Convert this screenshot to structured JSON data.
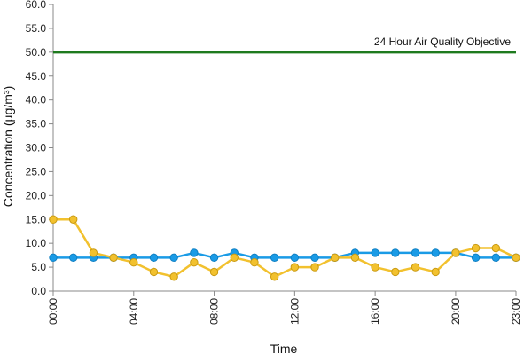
{
  "chart_data": {
    "type": "line",
    "xlabel": "Time",
    "ylabel": "Concentration (µg/m³)",
    "ylim": [
      0,
      60
    ],
    "y_ticks": [
      "0.0",
      "5.0",
      "10.0",
      "15.0",
      "20.0",
      "25.0",
      "30.0",
      "35.0",
      "40.0",
      "45.0",
      "50.0",
      "55.0",
      "60.0"
    ],
    "y_tick_values": [
      0,
      5,
      10,
      15,
      20,
      25,
      30,
      35,
      40,
      45,
      50,
      55,
      60
    ],
    "x_ticks": [
      "00:00",
      "04:00",
      "08:00",
      "12:00",
      "16:00",
      "20:00",
      "23:00"
    ],
    "x_tick_hours": [
      0,
      4,
      8,
      12,
      16,
      20,
      23
    ],
    "x": [
      "00:00",
      "01:00",
      "02:00",
      "03:00",
      "04:00",
      "05:00",
      "06:00",
      "07:00",
      "08:00",
      "09:00",
      "10:00",
      "11:00",
      "12:00",
      "13:00",
      "14:00",
      "15:00",
      "16:00",
      "17:00",
      "18:00",
      "19:00",
      "20:00",
      "21:00",
      "22:00",
      "23:00"
    ],
    "series": [
      {
        "color": "#1a9be6",
        "values": [
          7,
          7,
          7,
          7,
          7,
          7,
          7,
          8,
          7,
          8,
          7,
          7,
          7,
          7,
          7,
          8,
          8,
          8,
          8,
          8,
          8,
          7,
          7,
          7
        ]
      },
      {
        "color": "#f2c12e",
        "values": [
          15,
          15,
          8,
          7,
          6,
          4,
          3,
          6,
          4,
          7,
          6,
          3,
          5,
          5,
          7,
          7,
          5,
          4,
          5,
          4,
          8,
          9,
          9,
          7
        ]
      }
    ],
    "reference_line": {
      "value": 50,
      "label": "24 Hour Air Quality Objective",
      "color": "#1e7a1e"
    },
    "grid": false
  }
}
